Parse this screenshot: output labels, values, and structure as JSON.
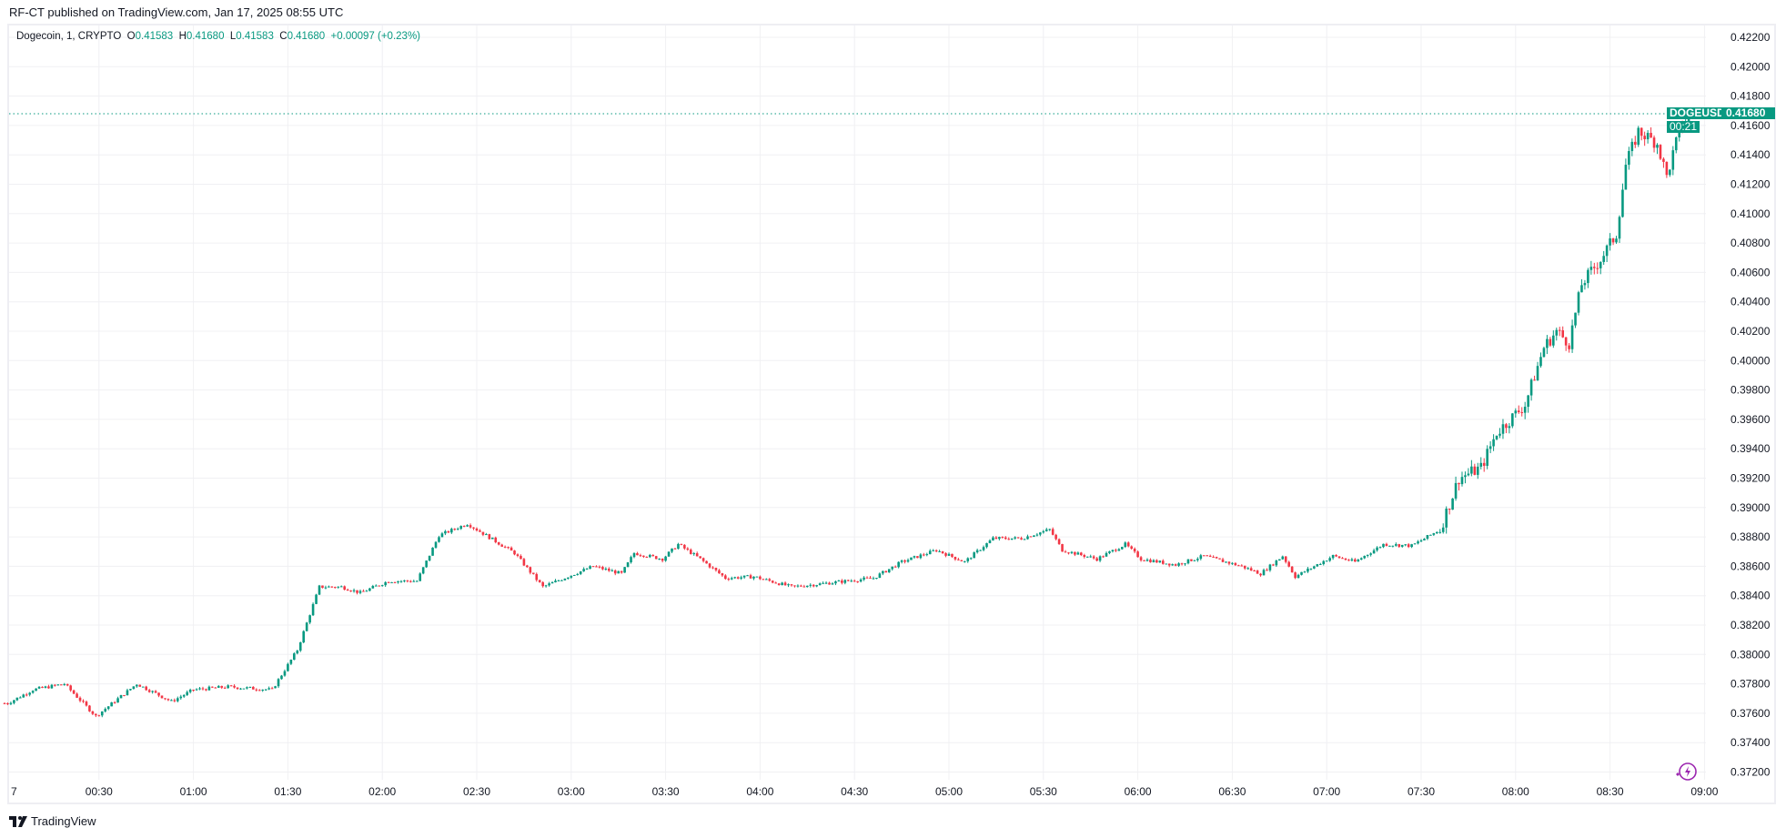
{
  "header": {
    "published": "RF-CT published on TradingView.com, Jan 17, 2025 08:55 UTC"
  },
  "legend": {
    "symbol": "Dogecoin, 1, CRYPTO",
    "o_label": "O",
    "o": "0.41583",
    "h_label": "H",
    "h": "0.41680",
    "l_label": "L",
    "l": "0.41583",
    "c_label": "C",
    "c": "0.41680",
    "change": "+0.00097 (+0.23%)"
  },
  "price_tag": {
    "symbol": "DOGEUSD",
    "price": "0.41680",
    "countdown": "00:21"
  },
  "footer": {
    "brand": "TradingView"
  },
  "colors": {
    "up": "#089981",
    "down": "#f23645",
    "grid": "#f0f0f3",
    "icon": "#9c27b0"
  },
  "chart_data": {
    "type": "candlestick",
    "title": "Dogecoin, 1, CRYPTO",
    "interval_minutes": 1,
    "ylim": [
      0.371,
      0.423
    ],
    "y_ticks": [
      "0.37200",
      "0.37400",
      "0.37600",
      "0.37800",
      "0.38000",
      "0.38200",
      "0.38400",
      "0.38600",
      "0.38800",
      "0.39000",
      "0.39200",
      "0.39400",
      "0.39600",
      "0.39800",
      "0.40000",
      "0.40200",
      "0.40400",
      "0.40600",
      "0.40800",
      "0.41000",
      "0.41200",
      "0.41400",
      "0.41600",
      "0.41800",
      "0.42000",
      "0.42200"
    ],
    "x_ticks": [
      "7",
      "00:30",
      "01:00",
      "01:30",
      "02:00",
      "02:30",
      "03:00",
      "03:30",
      "04:00",
      "04:30",
      "05:00",
      "05:30",
      "06:00",
      "06:30",
      "07:00",
      "07:30",
      "08:00",
      "08:30",
      "09:00"
    ],
    "last_price": 0.4168,
    "close_path_minute_price": [
      [
        1,
        0.37668
      ],
      [
        9,
        0.3776
      ],
      [
        19,
        0.378
      ],
      [
        29,
        0.3758
      ],
      [
        42,
        0.378
      ],
      [
        53,
        0.3768
      ],
      [
        60,
        0.3776
      ],
      [
        71,
        0.3778
      ],
      [
        85,
        0.3776
      ],
      [
        93,
        0.3803
      ],
      [
        100,
        0.3846
      ],
      [
        107,
        0.3846
      ],
      [
        113,
        0.3842
      ],
      [
        122,
        0.385
      ],
      [
        131,
        0.385
      ],
      [
        138,
        0.3881
      ],
      [
        147,
        0.3889
      ],
      [
        153,
        0.3881
      ],
      [
        162,
        0.3869
      ],
      [
        171,
        0.3846
      ],
      [
        180,
        0.3854
      ],
      [
        187,
        0.386
      ],
      [
        196,
        0.3855
      ],
      [
        200,
        0.3869
      ],
      [
        209,
        0.3865
      ],
      [
        214,
        0.3875
      ],
      [
        221,
        0.3865
      ],
      [
        229,
        0.3852
      ],
      [
        238,
        0.3853
      ],
      [
        250,
        0.3846
      ],
      [
        259,
        0.3848
      ],
      [
        276,
        0.3852
      ],
      [
        285,
        0.3863
      ],
      [
        296,
        0.3871
      ],
      [
        305,
        0.3863
      ],
      [
        314,
        0.3879
      ],
      [
        323,
        0.3879
      ],
      [
        332,
        0.3885
      ],
      [
        336,
        0.3871
      ],
      [
        347,
        0.3865
      ],
      [
        356,
        0.3875
      ],
      [
        361,
        0.3865
      ],
      [
        372,
        0.3861
      ],
      [
        381,
        0.3867
      ],
      [
        393,
        0.386
      ],
      [
        399,
        0.3855
      ],
      [
        406,
        0.3867
      ],
      [
        410,
        0.3853
      ],
      [
        422,
        0.3867
      ],
      [
        429,
        0.3863
      ],
      [
        438,
        0.3875
      ],
      [
        447,
        0.3874
      ],
      [
        456,
        0.3885
      ],
      [
        462,
        0.392
      ],
      [
        469,
        0.3927
      ],
      [
        474,
        0.3951
      ],
      [
        483,
        0.397
      ],
      [
        489,
        0.4009
      ],
      [
        493,
        0.402
      ],
      [
        497,
        0.4012
      ],
      [
        501,
        0.4052
      ],
      [
        507,
        0.4069
      ],
      [
        512,
        0.4086
      ],
      [
        515,
        0.4133
      ],
      [
        519,
        0.4156
      ],
      [
        525,
        0.4148
      ],
      [
        528,
        0.4125
      ],
      [
        532,
        0.4156
      ],
      [
        535,
        0.4168
      ]
    ]
  }
}
